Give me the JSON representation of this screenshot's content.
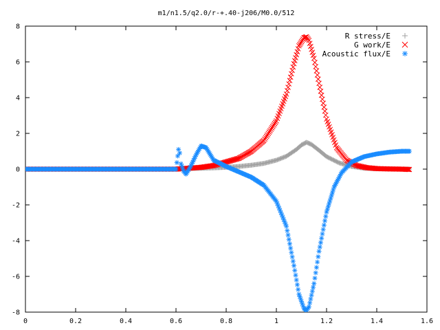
{
  "chart_data": {
    "type": "scatter",
    "title": "m1/n1.5/q2.0/r-+.40-j206/M0.0/512",
    "xlabel": "",
    "ylabel": "",
    "xlim": [
      0,
      1.6
    ],
    "ylim": [
      -8,
      8
    ],
    "xticks": [
      0,
      0.2,
      0.4,
      0.6,
      0.8,
      1,
      1.2,
      1.4,
      1.6
    ],
    "yticks": [
      -8,
      -6,
      -4,
      -2,
      0,
      2,
      4,
      6,
      8
    ],
    "xtick_labels": [
      "0",
      "0.2",
      "0.4",
      "0.6",
      "0.8",
      "1",
      "1.2",
      "1.4",
      "1.6"
    ],
    "ytick_labels": [
      "-8",
      "-6",
      "-4",
      "-2",
      "0",
      "2",
      "4",
      "6",
      "8"
    ],
    "grid": false,
    "legend_position": "top-right",
    "series": [
      {
        "name": "R stress/E",
        "marker": "plus",
        "color": "#a0a0a0",
        "x": [
          0.0,
          0.1,
          0.2,
          0.3,
          0.4,
          0.5,
          0.6,
          0.62,
          0.65,
          0.7,
          0.75,
          0.8,
          0.85,
          0.9,
          0.95,
          1.0,
          1.04,
          1.08,
          1.1,
          1.12,
          1.14,
          1.17,
          1.2,
          1.25,
          1.3,
          1.35,
          1.4,
          1.45,
          1.5,
          1.53
        ],
        "y": [
          0,
          0,
          0,
          0,
          0,
          0,
          0,
          0.02,
          0.03,
          0.05,
          0.07,
          0.1,
          0.15,
          0.22,
          0.32,
          0.5,
          0.72,
          1.1,
          1.35,
          1.5,
          1.38,
          1.05,
          0.7,
          0.35,
          0.15,
          0.05,
          0.02,
          0.01,
          0,
          0
        ]
      },
      {
        "name": "G work/E",
        "marker": "cross",
        "color": "#ff0000",
        "x": [
          0.0,
          0.1,
          0.2,
          0.3,
          0.4,
          0.5,
          0.6,
          0.62,
          0.65,
          0.7,
          0.75,
          0.8,
          0.85,
          0.9,
          0.95,
          1.0,
          1.04,
          1.07,
          1.09,
          1.11,
          1.12,
          1.13,
          1.15,
          1.17,
          1.2,
          1.24,
          1.28,
          1.32,
          1.36,
          1.4,
          1.45,
          1.5,
          1.53
        ],
        "y": [
          0,
          0,
          0,
          0,
          0,
          0,
          0,
          0.02,
          0.05,
          0.1,
          0.2,
          0.4,
          0.6,
          1.0,
          1.6,
          2.7,
          4.2,
          5.9,
          6.9,
          7.35,
          7.4,
          7.2,
          6.2,
          4.8,
          2.8,
          1.2,
          0.5,
          0.2,
          0.08,
          0.03,
          0.01,
          0,
          -0.02
        ]
      },
      {
        "name": "Acoustic flux/E",
        "marker": "star",
        "color": "#1a8cff",
        "x": [
          0.0,
          0.1,
          0.2,
          0.3,
          0.4,
          0.5,
          0.6,
          0.61,
          0.615,
          0.62,
          0.63,
          0.64,
          0.66,
          0.68,
          0.7,
          0.72,
          0.75,
          0.8,
          0.85,
          0.9,
          0.95,
          1.0,
          1.04,
          1.07,
          1.09,
          1.11,
          1.12,
          1.13,
          1.15,
          1.17,
          1.2,
          1.23,
          1.26,
          1.3,
          1.35,
          1.4,
          1.45,
          1.5,
          1.53
        ],
        "y": [
          0,
          0,
          0,
          0,
          0,
          0,
          0,
          1.1,
          0.9,
          0.3,
          -0.1,
          -0.28,
          0.2,
          0.8,
          1.3,
          1.2,
          0.5,
          0.15,
          -0.15,
          -0.45,
          -0.9,
          -1.8,
          -3.2,
          -5.4,
          -7.0,
          -7.8,
          -7.9,
          -7.7,
          -6.4,
          -4.6,
          -2.4,
          -1.0,
          -0.2,
          0.4,
          0.7,
          0.85,
          0.95,
          1.0,
          1.0
        ]
      }
    ]
  }
}
